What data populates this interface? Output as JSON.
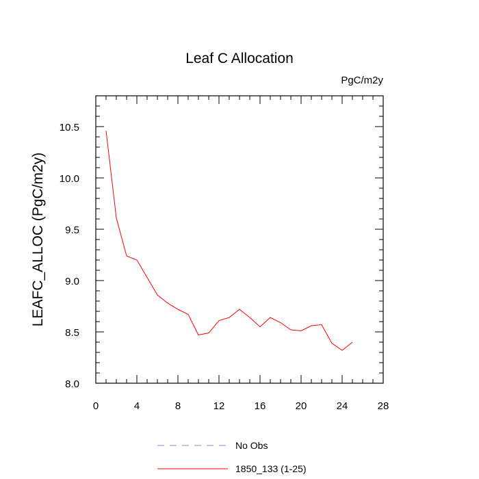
{
  "chart_data": {
    "type": "line",
    "title": "Leaf C Allocation",
    "units": "PgC/m2y",
    "ylabel": "LEAFC_ALLOC  (PgC/m2y)",
    "xlabel": "",
    "xlim": [
      0,
      28
    ],
    "ylim": [
      8.0,
      10.8
    ],
    "xticks": [
      0,
      4,
      8,
      12,
      16,
      20,
      24,
      28
    ],
    "xtick_labels": [
      "0",
      "4",
      "8",
      "12",
      "16",
      "20",
      "24",
      "28"
    ],
    "yticks": [
      8.0,
      8.5,
      9.0,
      9.5,
      10.0,
      10.5
    ],
    "ytick_labels": [
      "8.0",
      "8.5",
      "9.0",
      "9.5",
      "10.0",
      "10.5"
    ],
    "series": [
      {
        "name": "1850_133 (1-25)",
        "color": "#ff0000",
        "style": "solid",
        "x": [
          1,
          2,
          3,
          4,
          5,
          6,
          7,
          8,
          9,
          10,
          11,
          12,
          13,
          14,
          15,
          16,
          17,
          18,
          19,
          20,
          21,
          22,
          23,
          24,
          25
        ],
        "y": [
          10.46,
          9.61,
          9.24,
          9.2,
          9.03,
          8.86,
          8.78,
          8.72,
          8.67,
          8.47,
          8.49,
          8.61,
          8.64,
          8.72,
          8.64,
          8.55,
          8.64,
          8.59,
          8.52,
          8.51,
          8.56,
          8.57,
          8.39,
          8.32,
          8.4
        ]
      }
    ],
    "legend": [
      {
        "label": "No Obs",
        "color": "#8080ff",
        "style": "dashed"
      },
      {
        "label": "1850_133 (1-25)",
        "color": "#ff0000",
        "style": "solid"
      }
    ],
    "legend_position": "bottom"
  }
}
